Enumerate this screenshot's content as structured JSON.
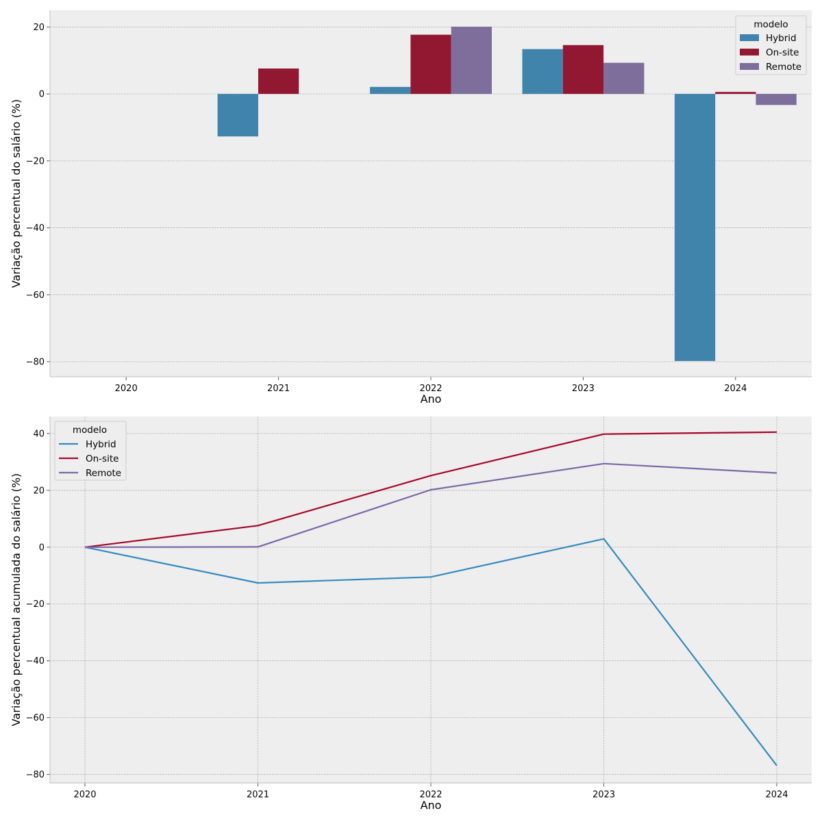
{
  "chart_data": [
    {
      "type": "bar",
      "xlabel": "Ano",
      "ylabel": "Variação percentual do salário (%)",
      "categories": [
        "2020",
        "2021",
        "2022",
        "2023",
        "2024"
      ],
      "ylim": [
        -84.5,
        25
      ],
      "yticks": [
        20,
        0,
        -20,
        -40,
        -60,
        -80
      ],
      "ytick_labels": [
        "20",
        "0",
        "−20",
        "−40",
        "−60",
        "−80"
      ],
      "grid": true,
      "legend": {
        "title": "modelo",
        "placement": "top-right"
      },
      "series": [
        {
          "name": "Hybrid",
          "color": "#4083ab",
          "values": [
            null,
            -12.7,
            2.1,
            13.4,
            -79.8
          ]
        },
        {
          "name": "On-site",
          "color": "#921832",
          "values": [
            null,
            7.6,
            17.7,
            14.6,
            0.6
          ]
        },
        {
          "name": "Remote",
          "color": "#7d6e9c",
          "values": [
            null,
            null,
            20.1,
            9.3,
            -3.3
          ]
        }
      ]
    },
    {
      "type": "line",
      "xlabel": "Ano",
      "ylabel": "Variação percentual acumulada do salário (%)",
      "x": [
        "2020",
        "2021",
        "2022",
        "2023",
        "2024"
      ],
      "ylim": [
        -83,
        46
      ],
      "yticks": [
        40,
        20,
        0,
        -20,
        -40,
        -60,
        -80
      ],
      "ytick_labels": [
        "40",
        "20",
        "0",
        "−20",
        "−40",
        "−60",
        "−80"
      ],
      "grid": true,
      "legend": {
        "title": "modelo",
        "placement": "top-left"
      },
      "series": [
        {
          "name": "Hybrid",
          "color": "#348abd",
          "values": [
            0,
            -12.6,
            -10.5,
            2.9,
            -76.9
          ]
        },
        {
          "name": "On-site",
          "color": "#a60628",
          "values": [
            0,
            7.6,
            25.2,
            39.8,
            40.5
          ]
        },
        {
          "name": "Remote",
          "color": "#7a68a6",
          "values": [
            0,
            0.1,
            20.2,
            29.4,
            26.1
          ]
        }
      ]
    }
  ]
}
